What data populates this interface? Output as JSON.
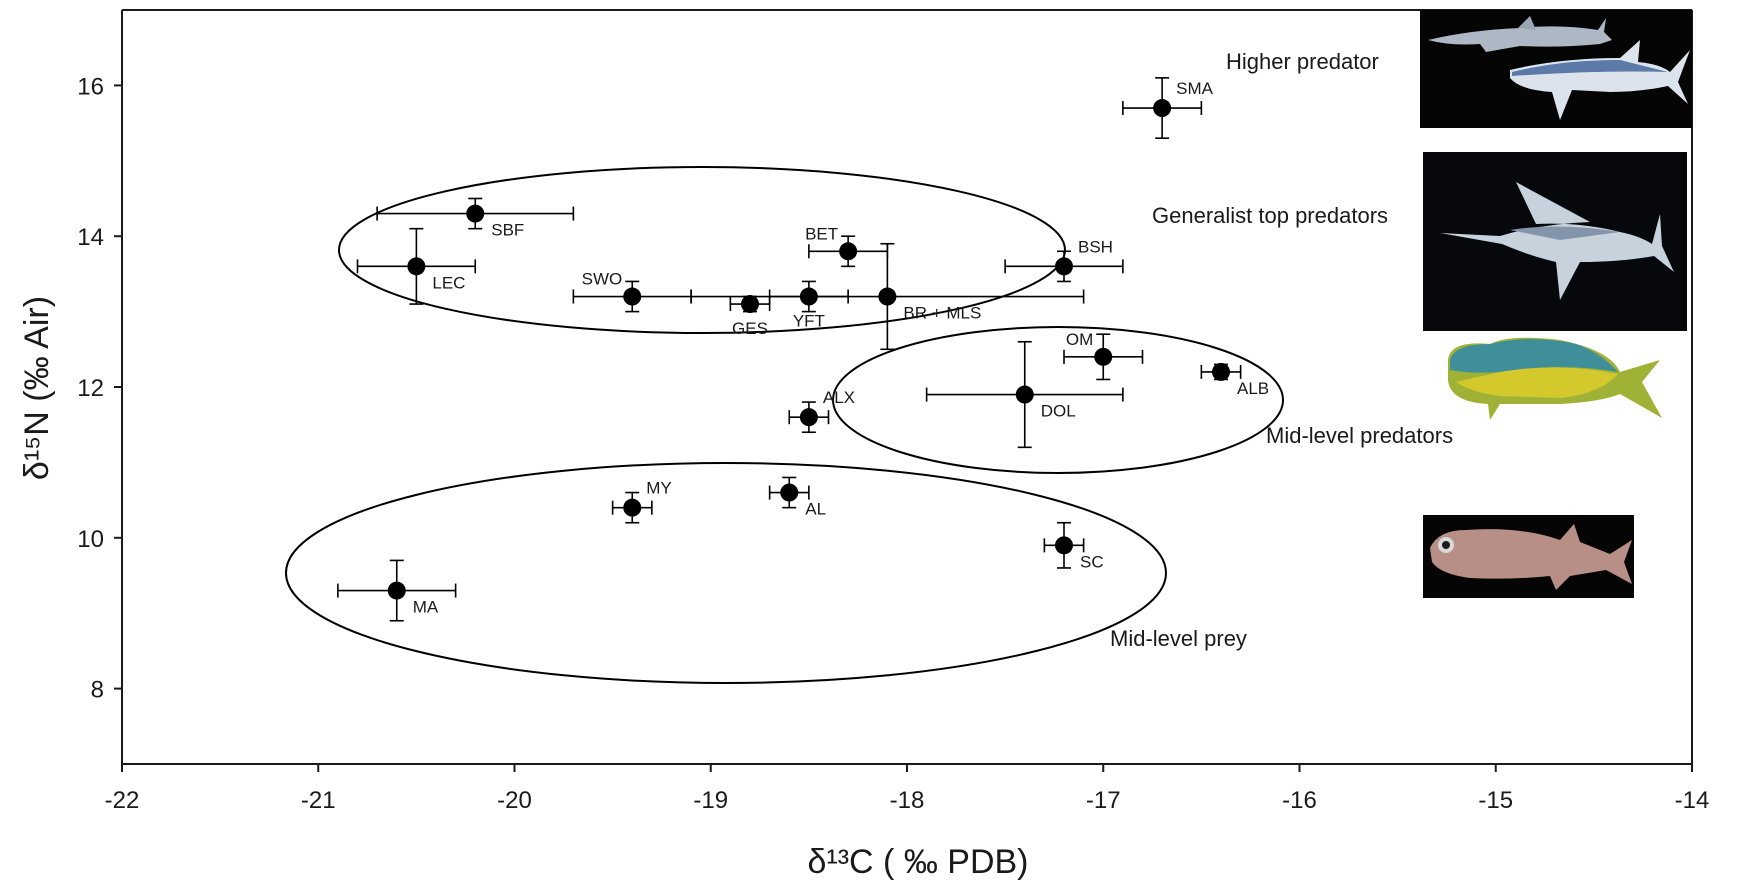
{
  "chart_data": {
    "type": "scatter",
    "xlabel": "δ¹³C ( ‰ PDB)",
    "ylabel": "δ¹⁵N (‰ Air)",
    "xlim": [
      -22,
      -14
    ],
    "ylim": [
      7,
      17
    ],
    "x_ticks": [
      -22,
      -21,
      -20,
      -19,
      -18,
      -17,
      -16,
      -15,
      -14
    ],
    "y_ticks": [
      8,
      10,
      12,
      14,
      16
    ],
    "grid": false,
    "points": [
      {
        "label": "SMA",
        "x": -16.7,
        "y": 15.7,
        "xerr": 0.2,
        "yerr": 0.4
      },
      {
        "label": "SBF",
        "x": -20.2,
        "y": 14.3,
        "xerr": 0.5,
        "yerr": 0.2
      },
      {
        "label": "LEC",
        "x": -20.5,
        "y": 13.6,
        "xerr": 0.3,
        "yerr": 0.5
      },
      {
        "label": "BET",
        "x": -18.3,
        "y": 13.8,
        "xerr": 0.2,
        "yerr": 0.2
      },
      {
        "label": "BSH",
        "x": -17.2,
        "y": 13.6,
        "xerr": 0.3,
        "yerr": 0.2
      },
      {
        "label": "SWO",
        "x": -19.4,
        "y": 13.2,
        "xerr": 0.3,
        "yerr": 0.2
      },
      {
        "label": "GES",
        "x": -18.8,
        "y": 13.1,
        "xerr": 0.1,
        "yerr": 0.1
      },
      {
        "label": "YFT",
        "x": -18.5,
        "y": 13.2,
        "xerr": 0.2,
        "yerr": 0.2
      },
      {
        "label": "BR + MLS",
        "x": -18.1,
        "y": 13.2,
        "xerr": 1.0,
        "yerr": 0.7
      },
      {
        "label": "OM",
        "x": -17.0,
        "y": 12.4,
        "xerr": 0.2,
        "yerr": 0.3
      },
      {
        "label": "ALB",
        "x": -16.4,
        "y": 12.2,
        "xerr": 0.1,
        "yerr": 0.1
      },
      {
        "label": "DOL",
        "x": -17.4,
        "y": 11.9,
        "xerr": 0.5,
        "yerr": 0.7
      },
      {
        "label": "ALX",
        "x": -18.5,
        "y": 11.6,
        "xerr": 0.1,
        "yerr": 0.2
      },
      {
        "label": "MY",
        "x": -19.4,
        "y": 10.4,
        "xerr": 0.1,
        "yerr": 0.2
      },
      {
        "label": "AL",
        "x": -18.6,
        "y": 10.6,
        "xerr": 0.1,
        "yerr": 0.2
      },
      {
        "label": "SC",
        "x": -17.2,
        "y": 9.9,
        "xerr": 0.1,
        "yerr": 0.3
      },
      {
        "label": "MA",
        "x": -20.6,
        "y": 9.3,
        "xerr": 0.3,
        "yerr": 0.4
      }
    ],
    "groups": [
      {
        "label": "Higher predator"
      },
      {
        "label": "Generalist top predators"
      },
      {
        "label": "Mid-level predators"
      },
      {
        "label": "Mid-level prey"
      }
    ]
  },
  "colors": {
    "marker": "#000000",
    "axis": "#1a1a1a",
    "photo_bg": "#050505"
  },
  "images": [
    {
      "name": "shark-image"
    },
    {
      "name": "swordfish-image"
    },
    {
      "name": "dolphinfish-image"
    },
    {
      "name": "lanternfish-image"
    }
  ]
}
